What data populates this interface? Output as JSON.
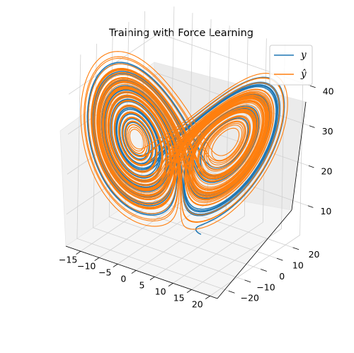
{
  "chart_data": {
    "type": "line",
    "subtype": "3d",
    "title": "Training with Force Learning",
    "xlabel": "",
    "ylabel": "",
    "zlabel": "",
    "xlim": [
      -19,
      22
    ],
    "ylim": [
      -27,
      29
    ],
    "zlim": [
      2,
      48
    ],
    "xticks": [
      "−15",
      "−10",
      "−5",
      "0",
      "5",
      "10",
      "15",
      "20"
    ],
    "yticks": [
      "−20",
      "−10",
      "0",
      "10",
      "20"
    ],
    "zticks": [
      "10",
      "20",
      "30",
      "40"
    ],
    "grid": true,
    "legend_position": "upper-right",
    "system": "Lorenz attractor",
    "series": [
      {
        "name": "y",
        "color": "#1f77b4"
      },
      {
        "name": "ŷ",
        "color": "#ff7f0e"
      }
    ]
  }
}
